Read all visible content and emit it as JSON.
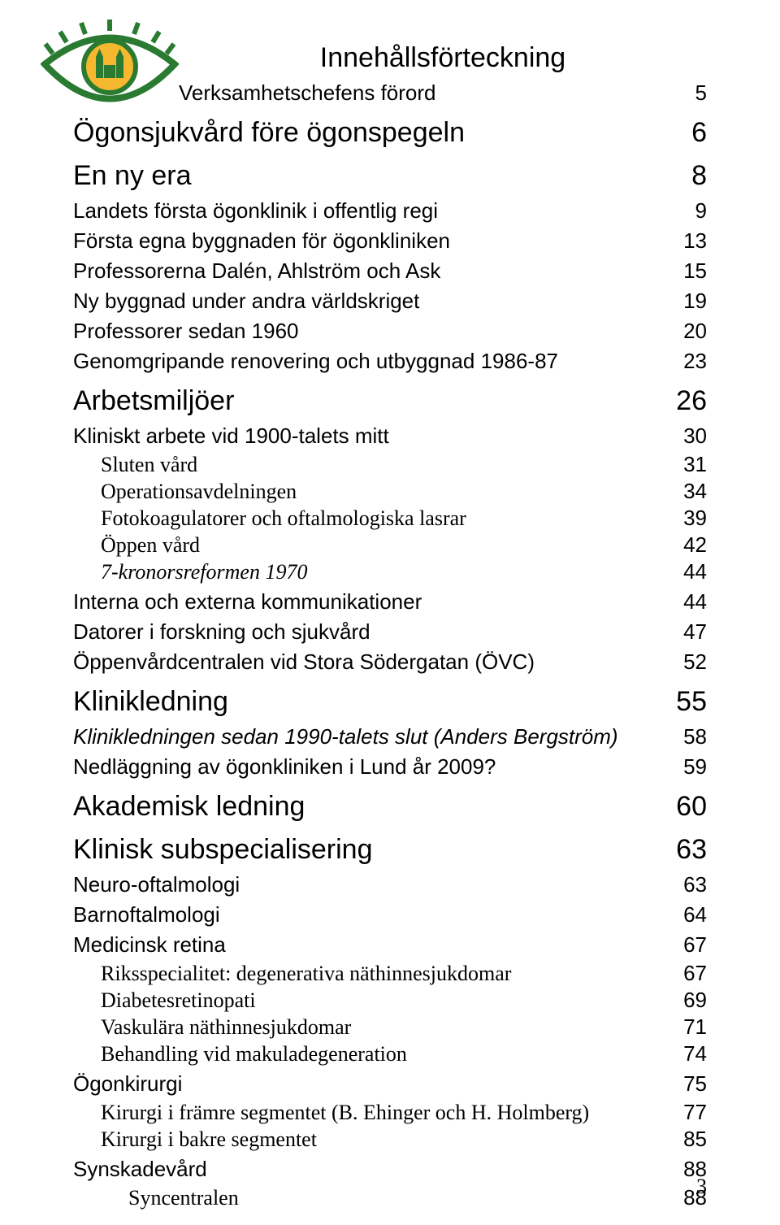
{
  "colors": {
    "brand_green": "#2a7a31",
    "brand_yellow": "#f5b82e",
    "text": "#000000",
    "background": "#ffffff"
  },
  "fonts": {
    "sans": "Arial, Helvetica, sans-serif",
    "serif": "'Times New Roman', Times, serif",
    "title_size_pt": 34,
    "h1_size_pt": 34,
    "h2_size_pt": 26,
    "h3_size_pt": 26,
    "page_num_size_pt": 26
  },
  "title": "Innehållsförteckning",
  "subtitle": {
    "label": "Verksamhetschefens förord",
    "page": "5"
  },
  "toc": [
    {
      "style": "h1",
      "label": "Ögonsjukvård före ögonspegeln",
      "page": "6"
    },
    {
      "style": "h1",
      "label": "En ny era",
      "page": "8"
    },
    {
      "style": "h2",
      "label": "Landets första ögonklinik i offentlig regi",
      "page": "9"
    },
    {
      "style": "h2",
      "label": "Första egna byggnaden för ögonkliniken",
      "page": "13"
    },
    {
      "style": "h2",
      "label": "Professorerna Dalén, Ahlström och Ask",
      "page": "15"
    },
    {
      "style": "h2",
      "label": "Ny byggnad under andra världskriget",
      "page": "19"
    },
    {
      "style": "h2",
      "label": "Professorer sedan 1960",
      "page": "20"
    },
    {
      "style": "h2",
      "label": "Genomgripande renovering och utbyggnad 1986-87",
      "page": "23"
    },
    {
      "style": "h1",
      "label": "Arbetsmiljöer",
      "page": "26"
    },
    {
      "style": "h2",
      "label": "Kliniskt arbete vid 1900-talets mitt",
      "page": "30"
    },
    {
      "style": "h3",
      "label": "Sluten vård",
      "page": "31"
    },
    {
      "style": "h3",
      "label": "Operationsavdelningen",
      "page": "34"
    },
    {
      "style": "h3",
      "label": "Fotokoagulatorer och oftalmologiska lasrar",
      "page": "39"
    },
    {
      "style": "h3",
      "label": "Öppen vård",
      "page": "42"
    },
    {
      "style": "h3i",
      "label": "7-kronorsreformen 1970",
      "page": "44"
    },
    {
      "style": "h2",
      "label": "Interna och externa kommunikationer",
      "page": "44"
    },
    {
      "style": "h2",
      "label": "Datorer i forskning och sjukvård",
      "page": "47"
    },
    {
      "style": "h2",
      "label": "Öppenvårdcentralen vid Stora Södergatan (ÖVC)",
      "page": "52"
    },
    {
      "style": "h1",
      "label": "Klinikledning",
      "page": "55"
    },
    {
      "style": "h2i",
      "label": "Klinikledningen sedan 1990-talets slut (Anders Bergström)",
      "page": "58"
    },
    {
      "style": "h2",
      "label": "Nedläggning av ögonkliniken i Lund år 2009?",
      "page": "59"
    },
    {
      "style": "h1",
      "label": "Akademisk ledning",
      "page": "60"
    },
    {
      "style": "h1",
      "label": "Klinisk subspecialisering",
      "page": "63"
    },
    {
      "style": "h2",
      "label": "Neuro-oftalmologi",
      "page": "63"
    },
    {
      "style": "h2",
      "label": "Barnoftalmologi",
      "page": "64"
    },
    {
      "style": "h2",
      "label": "Medicinsk retina",
      "page": "67"
    },
    {
      "style": "h3",
      "label": "Riksspecialitet: degenerativa näthinnesjukdomar",
      "page": "67"
    },
    {
      "style": "h3",
      "label": "Diabetesretinopati",
      "page": "69"
    },
    {
      "style": "h3",
      "label": "Vaskulära näthinnesjukdomar",
      "page": "71"
    },
    {
      "style": "h3",
      "label": "Behandling vid makuladegeneration",
      "page": "74"
    },
    {
      "style": "h2",
      "label": "Ögonkirurgi",
      "page": "75"
    },
    {
      "style": "h3",
      "label": "Kirurgi i främre segmentet (B. Ehinger och H. Holmberg)",
      "page": "77"
    },
    {
      "style": "h3",
      "label": "Kirurgi i bakre segmentet",
      "page": "85"
    },
    {
      "style": "h2",
      "label": "Synskadevård",
      "page": "88"
    },
    {
      "style": "h4",
      "label": "Syncentralen",
      "page": "88"
    }
  ],
  "page_number": "3",
  "logo": {
    "width": 170,
    "height": 110,
    "outer_stroke": "#2a7a31",
    "inner_fill": "#f5b82e",
    "inner_stroke": "#2a7a31"
  }
}
